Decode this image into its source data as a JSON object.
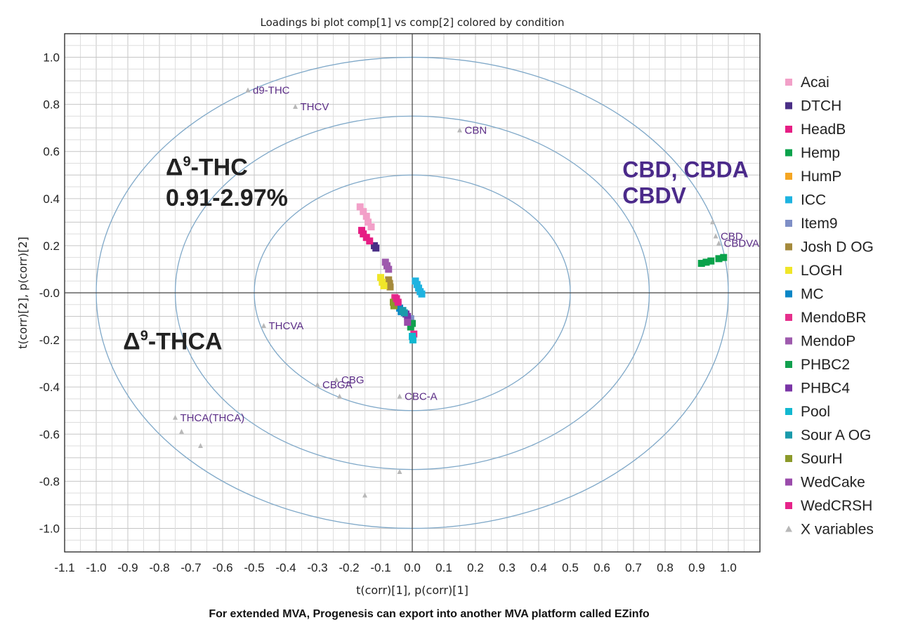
{
  "chart_data": {
    "type": "scatter",
    "title": "Loadings bi plot comp[1] vs comp[2] colored by condition",
    "xlabel": "t(corr)[1], p(corr)[1]",
    "ylabel": "t(corr)[2], p(corr)[2]",
    "xlim": [
      -1.1,
      1.1
    ],
    "ylim": [
      -1.1,
      1.1
    ],
    "x_ticks": [
      "-1.1",
      "-1.0",
      "-0.9",
      "-0.8",
      "-0.7",
      "-0.6",
      "-0.5",
      "-0.4",
      "-0.3",
      "-0.2",
      "-0.1",
      "0.0",
      "0.1",
      "0.2",
      "0.3",
      "0.4",
      "0.5",
      "0.6",
      "0.7",
      "0.8",
      "0.9",
      "1.0"
    ],
    "y_ticks": [
      "1.0",
      "0.8",
      "0.6",
      "0.4",
      "0.2",
      "-0.0",
      "-0.2",
      "-0.4",
      "-0.6",
      "-0.8",
      "-1.0"
    ],
    "grid": true,
    "circles_r": [
      0.5,
      0.75,
      1.0
    ],
    "legend_position": "right",
    "series": [
      {
        "name": "Acai",
        "color": "#f2a0c8",
        "points": [
          [
            -0.165,
            0.365
          ],
          [
            -0.155,
            0.345
          ],
          [
            -0.145,
            0.325
          ],
          [
            -0.14,
            0.3
          ],
          [
            -0.13,
            0.28
          ]
        ]
      },
      {
        "name": "DTCH",
        "color": "#4a2f86",
        "points": [
          [
            -0.12,
            0.2
          ],
          [
            -0.115,
            0.19
          ]
        ]
      },
      {
        "name": "HeadB",
        "color": "#e61e84",
        "points": [
          [
            -0.16,
            0.265
          ],
          [
            -0.155,
            0.25
          ],
          [
            -0.145,
            0.235
          ],
          [
            -0.135,
            0.22
          ]
        ]
      },
      {
        "name": "Hemp",
        "color": "#0aa24b",
        "points": [
          [
            0.915,
            0.125
          ],
          [
            0.93,
            0.13
          ],
          [
            0.945,
            0.135
          ],
          [
            0.97,
            0.145
          ],
          [
            0.985,
            0.15
          ]
        ]
      },
      {
        "name": "HumP",
        "color": "#f5a623",
        "points": [
          [
            -0.055,
            -0.03
          ],
          [
            -0.05,
            -0.05
          ]
        ]
      },
      {
        "name": "ICC",
        "color": "#1eb3e0",
        "points": [
          [
            0.01,
            0.05
          ],
          [
            0.015,
            0.035
          ],
          [
            0.02,
            0.02
          ],
          [
            0.025,
            0.005
          ],
          [
            0.03,
            -0.005
          ]
        ]
      },
      {
        "name": "Item9",
        "color": "#7f8fc6",
        "points": [
          [
            -0.005,
            -0.11
          ]
        ]
      },
      {
        "name": "Josh D OG",
        "color": "#a58a3c",
        "points": [
          [
            -0.075,
            0.055
          ],
          [
            -0.072,
            0.04
          ],
          [
            -0.07,
            0.025
          ]
        ]
      },
      {
        "name": "LOGH",
        "color": "#f0e629",
        "points": [
          [
            -0.1,
            0.065
          ],
          [
            -0.095,
            0.045
          ],
          [
            -0.09,
            0.03
          ]
        ]
      },
      {
        "name": "MC",
        "color": "#0a86c6",
        "points": [
          [
            -0.045,
            -0.05
          ],
          [
            -0.04,
            -0.065
          ],
          [
            -0.035,
            -0.08
          ]
        ]
      },
      {
        "name": "MendoBR",
        "color": "#e6308c",
        "points": [
          [
            -0.055,
            -0.02
          ],
          [
            -0.05,
            -0.035
          ],
          [
            0.005,
            -0.175
          ]
        ]
      },
      {
        "name": "MendoP",
        "color": "#9e5aad",
        "points": [
          [
            -0.085,
            0.13
          ],
          [
            -0.08,
            0.115
          ],
          [
            -0.075,
            0.1
          ]
        ]
      },
      {
        "name": "PHBC2",
        "color": "#11a04e",
        "points": [
          [
            0.0,
            -0.13
          ],
          [
            -0.005,
            -0.145
          ]
        ]
      },
      {
        "name": "PHBC4",
        "color": "#7a35a6",
        "points": [
          [
            -0.02,
            -0.09
          ],
          [
            -0.015,
            -0.1
          ]
        ]
      },
      {
        "name": "Pool",
        "color": "#12b8d0",
        "points": [
          [
            0.0,
            -0.185
          ],
          [
            0.002,
            -0.2
          ]
        ]
      },
      {
        "name": "Sour A OG",
        "color": "#1a9aab",
        "points": [
          [
            -0.03,
            -0.075
          ],
          [
            -0.025,
            -0.085
          ]
        ]
      },
      {
        "name": "SourH",
        "color": "#8c9a2a",
        "points": [
          [
            -0.06,
            -0.04
          ],
          [
            -0.058,
            -0.055
          ]
        ]
      },
      {
        "name": "WedCake",
        "color": "#9a4bab",
        "points": [
          [
            -0.015,
            -0.125
          ]
        ]
      },
      {
        "name": "WedCRSH",
        "color": "#e6248a",
        "points": [
          [
            -0.05,
            -0.025
          ],
          [
            -0.045,
            -0.04
          ]
        ]
      }
    ],
    "x_variables": {
      "name": "X variables",
      "color": "#b8b8b8",
      "points": [
        {
          "label": "d9-THC",
          "x": -0.52,
          "y": 0.86
        },
        {
          "label": "THCV",
          "x": -0.37,
          "y": 0.79
        },
        {
          "label": "CBN",
          "x": 0.15,
          "y": 0.69
        },
        {
          "label": "THCVA",
          "x": -0.47,
          "y": -0.14
        },
        {
          "label": "CBG",
          "x": -0.24,
          "y": -0.37
        },
        {
          "label": "CBGA",
          "x": -0.3,
          "y": -0.39
        },
        {
          "label": "CBC-A",
          "x": -0.04,
          "y": -0.44
        },
        {
          "label": "THCA(THCA)",
          "x": -0.75,
          "y": -0.53
        },
        {
          "label": "CBD",
          "x": 0.96,
          "y": 0.24
        },
        {
          "label": "CBDVA",
          "x": 0.97,
          "y": 0.21
        },
        {
          "label": "",
          "x": 0.95,
          "y": 0.3
        },
        {
          "label": "",
          "x": -0.23,
          "y": -0.44
        },
        {
          "label": "",
          "x": -0.73,
          "y": -0.59
        },
        {
          "label": "",
          "x": -0.67,
          "y": -0.65
        },
        {
          "label": "",
          "x": -0.04,
          "y": -0.76
        },
        {
          "label": "",
          "x": -0.15,
          "y": -0.86
        }
      ]
    },
    "annotations": [
      {
        "symbol": "Δ",
        "sup": "9",
        "text": "-THC",
        "x": -0.78,
        "y": 0.5,
        "style": "dark"
      },
      {
        "symbol": "",
        "sup": "",
        "text": "0.91-2.97%",
        "x": -0.78,
        "y": 0.37,
        "style": "dark"
      },
      {
        "symbol": "Δ",
        "sup": "9",
        "text": "-THCA",
        "x": -0.915,
        "y": -0.24,
        "style": "dark"
      },
      {
        "symbol": "",
        "sup": "",
        "text": "CBD, CBDA",
        "x": 0.665,
        "y": 0.49,
        "style": "purple"
      },
      {
        "symbol": "",
        "sup": "",
        "text": "CBDV",
        "x": 0.665,
        "y": 0.38,
        "style": "purple"
      }
    ]
  },
  "caption": "For extended MVA, Progenesis can export into another MVA platform called EZinfo"
}
